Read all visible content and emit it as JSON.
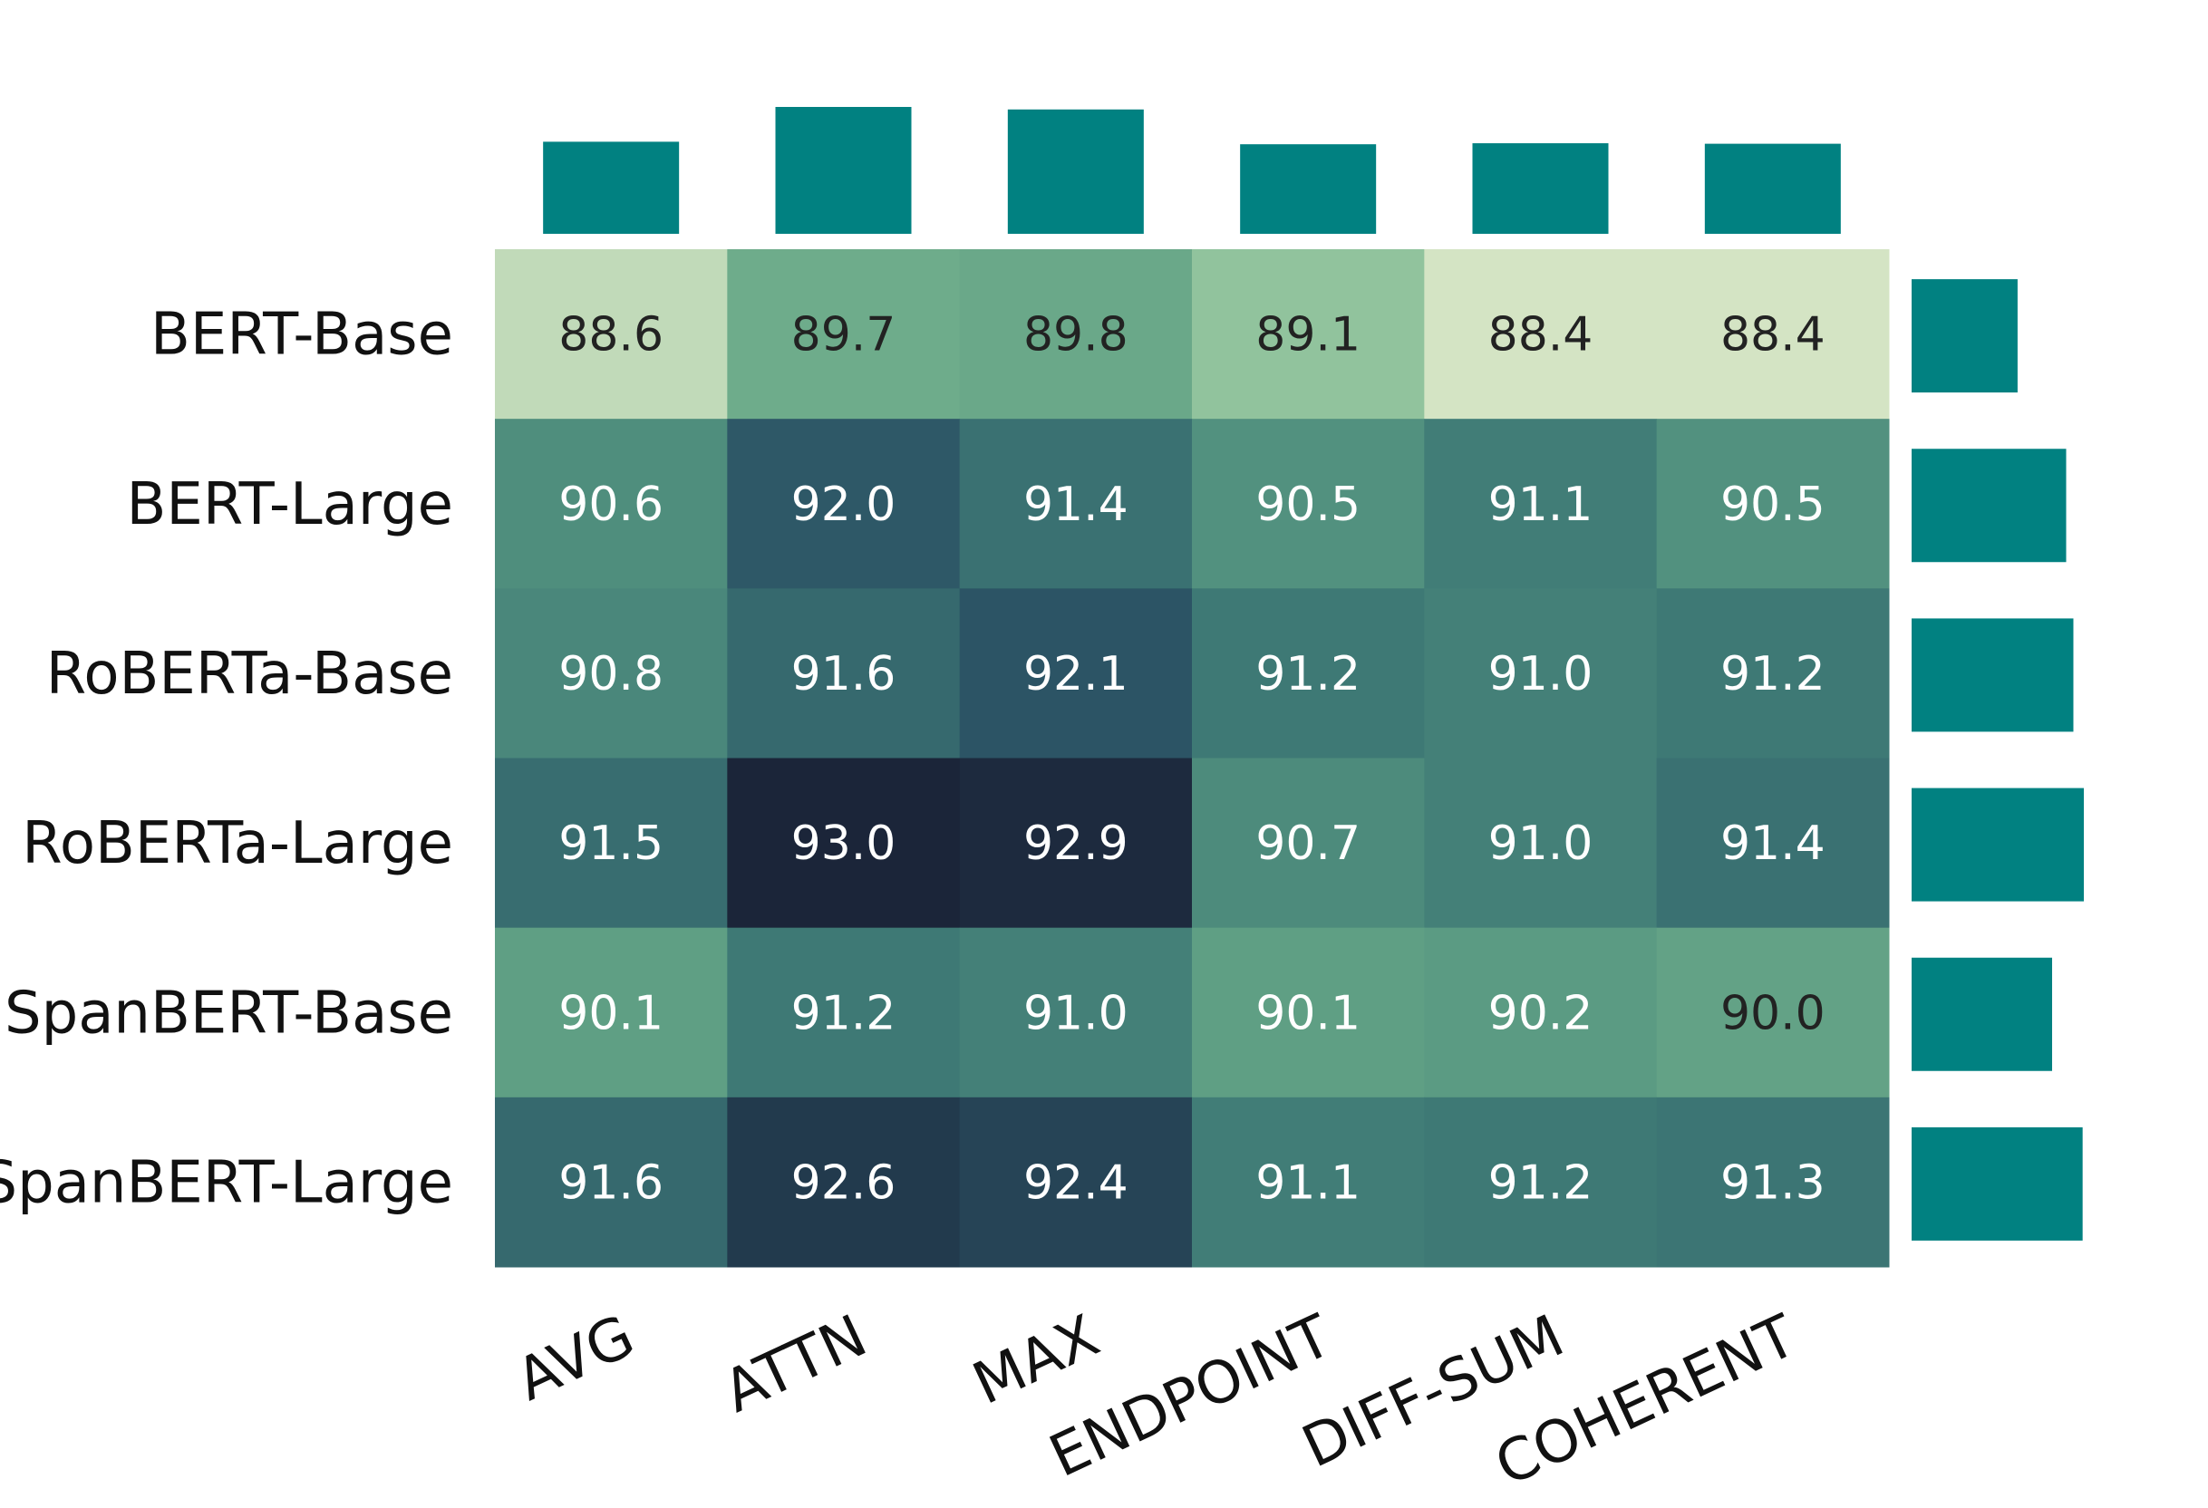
{
  "chart_data": {
    "type": "heatmap",
    "title": "",
    "xlabel": "",
    "ylabel": "",
    "columns": [
      "AVG",
      "ATTN",
      "MAX",
      "ENDPOINT",
      "DIFF-SUM",
      "COHERENT"
    ],
    "rows": [
      "BERT-Base",
      "BERT-Large",
      "RoBERTa-Base",
      "RoBERTa-Large",
      "SpanBERT-Base",
      "SpanBERT-Large"
    ],
    "values": [
      [
        88.6,
        89.7,
        89.8,
        89.1,
        88.4,
        88.4
      ],
      [
        90.6,
        92.0,
        91.4,
        90.5,
        91.1,
        90.5
      ],
      [
        90.8,
        91.6,
        92.1,
        91.2,
        91.0,
        91.2
      ],
      [
        91.5,
        93.0,
        92.9,
        90.7,
        91.0,
        91.4
      ],
      [
        90.1,
        91.2,
        91.0,
        90.1,
        90.2,
        90.0
      ],
      [
        91.6,
        92.6,
        92.4,
        91.1,
        91.2,
        91.3
      ]
    ],
    "value_format": "0.0",
    "color_range": [
      88.4,
      93.0
    ],
    "colormap": [
      "#d4e4c4",
      "#7cb891",
      "#5a9a82",
      "#3f7b76",
      "#2c5566",
      "#1b2539"
    ],
    "marginal_bars": {
      "top": "column means",
      "right": "row means",
      "color": "#018181"
    },
    "label_color_light": "#ffffff",
    "label_color_dark": "#222222",
    "colorbar": false,
    "grid": false
  }
}
